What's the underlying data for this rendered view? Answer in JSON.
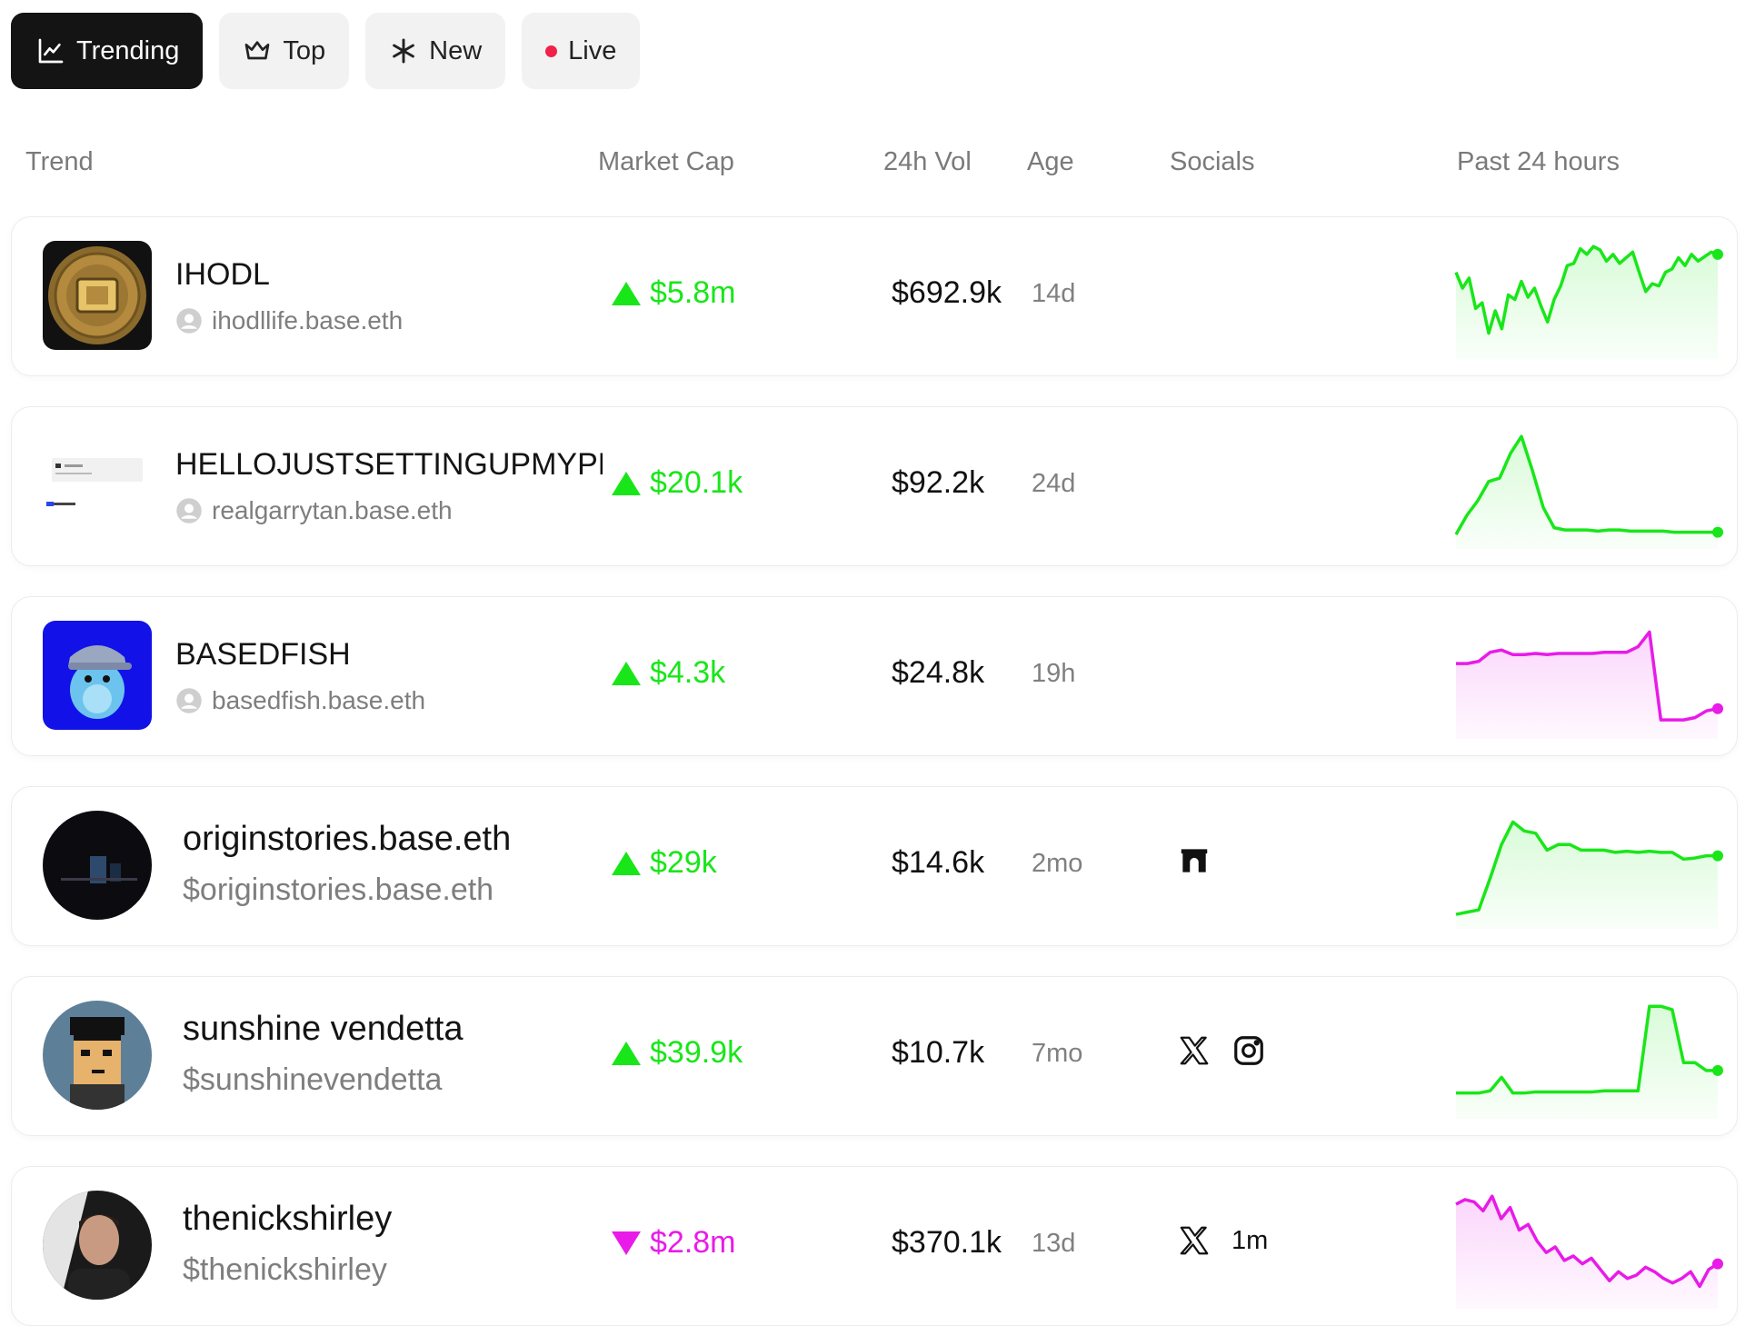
{
  "tabs": [
    {
      "label": "Trending",
      "icon": "trending-chart-icon",
      "active": true
    },
    {
      "label": "Top",
      "icon": "crown-icon",
      "active": false
    },
    {
      "label": "New",
      "icon": "asterisk-icon",
      "active": false
    },
    {
      "label": "Live",
      "icon": "live-dot-icon",
      "active": false
    }
  ],
  "columns": {
    "trend": "Trend",
    "market_cap": "Market Cap",
    "vol": "24h Vol",
    "age": "Age",
    "socials": "Socials",
    "past": "Past 24 hours"
  },
  "colors": {
    "up": "#19e619",
    "down": "#e81be8",
    "up_fill": "#d9fbd9",
    "down_fill": "#fbd6fb"
  },
  "rows": [
    {
      "name": "IHODL",
      "sub": "ihodllife.base.eth",
      "sub_type": "user",
      "market_cap": "$5.8m",
      "direction": "up",
      "vol": "$692.9k",
      "age": "14d",
      "socials": [],
      "socials_text": "",
      "spark": [
        0.28,
        0.42,
        0.33,
        0.6,
        0.55,
        0.82,
        0.62,
        0.78,
        0.48,
        0.52,
        0.36,
        0.5,
        0.42,
        0.58,
        0.72,
        0.52,
        0.4,
        0.22,
        0.2,
        0.07,
        0.12,
        0.05,
        0.08,
        0.18,
        0.12,
        0.2,
        0.15,
        0.1,
        0.28,
        0.45,
        0.38,
        0.4,
        0.28,
        0.25,
        0.15,
        0.22,
        0.12,
        0.18,
        0.14,
        0.1,
        0.12
      ]
    },
    {
      "name": "HELLOJUSTSETTINGUPMYPROFILE",
      "sub": "realgarrytan.base.eth",
      "sub_type": "user",
      "market_cap": "$20.1k",
      "direction": "up",
      "vol": "$92.2k",
      "age": "24d",
      "socials": [],
      "socials_text": "",
      "spark": [
        0.92,
        0.75,
        0.62,
        0.45,
        0.42,
        0.2,
        0.05,
        0.35,
        0.68,
        0.86,
        0.88,
        0.88,
        0.88,
        0.89,
        0.88,
        0.88,
        0.89,
        0.89,
        0.89,
        0.89,
        0.9,
        0.9,
        0.9,
        0.9,
        0.9
      ]
    },
    {
      "name": "BASEDFISH",
      "sub": "basedfish.base.eth",
      "sub_type": "user",
      "market_cap": "$4.3k",
      "direction": "up",
      "vol": "$24.8k",
      "age": "19h",
      "socials": [],
      "socials_text": "",
      "spark": [
        0.38,
        0.38,
        0.36,
        0.28,
        0.26,
        0.3,
        0.3,
        0.29,
        0.3,
        0.29,
        0.29,
        0.29,
        0.29,
        0.28,
        0.28,
        0.28,
        0.23,
        0.1,
        0.88,
        0.88,
        0.88,
        0.86,
        0.8,
        0.78
      ]
    },
    {
      "name": "originstories.base.eth",
      "sub": "$originstories.base.eth",
      "sub_type": "ticker",
      "market_cap": "$29k",
      "direction": "up",
      "vol": "$14.6k",
      "age": "2mo",
      "socials": [
        "warpcast-arch-icon"
      ],
      "socials_text": "",
      "spark": [
        0.92,
        0.9,
        0.88,
        0.6,
        0.3,
        0.1,
        0.18,
        0.2,
        0.35,
        0.3,
        0.3,
        0.35,
        0.35,
        0.35,
        0.37,
        0.36,
        0.37,
        0.36,
        0.37,
        0.37,
        0.43,
        0.42,
        0.4,
        0.4
      ]
    },
    {
      "name": "sunshine vendetta",
      "sub": "$sunshinevendetta",
      "sub_type": "ticker",
      "market_cap": "$39.9k",
      "direction": "up",
      "vol": "$10.7k",
      "age": "7mo",
      "socials": [
        "x-logo-icon",
        "instagram-icon"
      ],
      "socials_text": "",
      "spark": [
        0.82,
        0.82,
        0.82,
        0.8,
        0.68,
        0.82,
        0.82,
        0.81,
        0.81,
        0.81,
        0.81,
        0.81,
        0.81,
        0.8,
        0.8,
        0.8,
        0.8,
        0.05,
        0.05,
        0.08,
        0.55,
        0.55,
        0.62,
        0.62
      ]
    },
    {
      "name": "thenickshirley",
      "sub": "$thenickshirley",
      "sub_type": "ticker",
      "market_cap": "$2.8m",
      "direction": "down",
      "vol": "$370.1k",
      "age": "13d",
      "socials": [
        "x-logo-icon"
      ],
      "socials_text": "1m",
      "spark": [
        0.12,
        0.08,
        0.1,
        0.18,
        0.05,
        0.25,
        0.15,
        0.35,
        0.3,
        0.45,
        0.55,
        0.5,
        0.62,
        0.58,
        0.65,
        0.6,
        0.7,
        0.8,
        0.72,
        0.78,
        0.75,
        0.68,
        0.72,
        0.78,
        0.82,
        0.78,
        0.72,
        0.85,
        0.7,
        0.65
      ]
    }
  ]
}
